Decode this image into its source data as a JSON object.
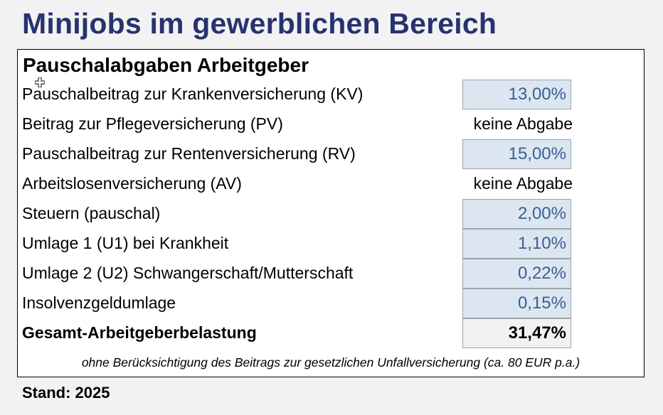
{
  "title": "Minijobs im gewerblichen Bereich",
  "section_title": "Pauschalabgaben Arbeitgeber",
  "rows": [
    {
      "label": "Pauschalbeitrag zur Krankenversicherung (KV)",
      "value": "13,00%"
    },
    {
      "label": "Beitrag zur Pflegeversicherung (PV)",
      "value": "keine Abgabe"
    },
    {
      "label": "Pauschalbeitrag zur Rentenversicherung (RV)",
      "value": "15,00%"
    },
    {
      "label": "Arbeitslosenversicherung (AV)",
      "value": "keine Abgabe"
    },
    {
      "label": "Steuern (pauschal)",
      "value": "2,00%"
    },
    {
      "label": "Umlage 1 (U1) bei Krankheit",
      "value": "1,10%"
    },
    {
      "label": "Umlage 2 (U2) Schwangerschaft/Mutterschaft",
      "value": "0,22%"
    },
    {
      "label": "Insolvenzgeldumlage",
      "value": "0,15%"
    }
  ],
  "total": {
    "label": "Gesamt-Arbeitgeberbelastung",
    "value": "31,47%"
  },
  "footnote": "ohne Berücksichtigung des Beitrags zur gesetzlichen Unfallversicherung (ca. 80 EUR p.a.)",
  "stand": "Stand: 2025",
  "colors": {
    "title": "#263370",
    "input_cell_bg": "#dce6f1",
    "input_cell_text": "#3a5f92",
    "total_cell_bg": "#f2f2f2"
  },
  "icons": {
    "cursor": "cell-select-cross-icon"
  }
}
